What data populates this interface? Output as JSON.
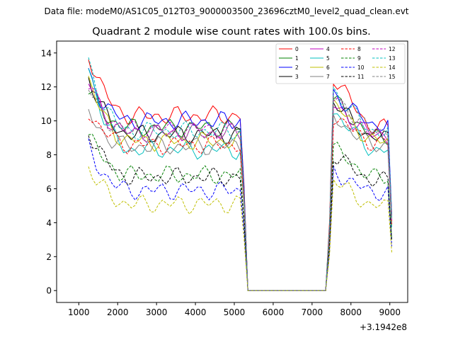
{
  "header": "Data file: modeM0/AS1C05_012T03_9000003500_23696cztM0_level2_quad_clean.evt",
  "chart_data": {
    "type": "line",
    "title": "Quadrant 2 module wise count rates with 100.0s bins.",
    "xlabel": "",
    "ylabel": "",
    "x_offset_label": "+3.1942e8",
    "xlim": [
      430,
      9460
    ],
    "ylim": [
      -0.7,
      14.7
    ],
    "x_ticks": [
      1000,
      2000,
      3000,
      4000,
      5000,
      6000,
      7000,
      8000,
      9000
    ],
    "x_tick_labels": [
      "1000",
      "2000",
      "3000",
      "4000",
      "5000",
      "6000",
      "7000",
      "8000",
      "9000"
    ],
    "y_ticks": [
      0,
      2,
      4,
      6,
      8,
      10,
      12,
      14
    ],
    "y_tick_labels": [
      "0",
      "2",
      "4",
      "6",
      "8",
      "10",
      "12",
      "14"
    ],
    "legend_position": "top-right",
    "series": [
      {
        "name": "0",
        "color": "#ff0000",
        "dash": "solid",
        "start": 14.0,
        "level": 10.3,
        "peak": 12.6,
        "post": 9.6
      },
      {
        "name": "1",
        "color": "#008000",
        "dash": "solid",
        "start": 11.8,
        "level": 9.6,
        "peak": 11.3,
        "post": 9.1
      },
      {
        "name": "2",
        "color": "#0000ff",
        "dash": "solid",
        "start": 12.7,
        "level": 10.0,
        "peak": 11.6,
        "post": 9.8
      },
      {
        "name": "3",
        "color": "#000000",
        "dash": "solid",
        "start": 12.6,
        "level": 9.2,
        "peak": 11.1,
        "post": 9.0
      },
      {
        "name": "4",
        "color": "#bf00bf",
        "dash": "solid",
        "start": 12.3,
        "level": 9.3,
        "peak": 10.9,
        "post": 9.2
      },
      {
        "name": "5",
        "color": "#00bfbf",
        "dash": "solid",
        "start": 13.2,
        "level": 8.3,
        "peak": 10.6,
        "post": 8.3
      },
      {
        "name": "6",
        "color": "#bfbf00",
        "dash": "solid",
        "start": 12.5,
        "level": 8.8,
        "peak": 11.0,
        "post": 8.8
      },
      {
        "name": "7",
        "color": "#808080",
        "dash": "solid",
        "start": 10.4,
        "level": 8.5,
        "peak": 10.2,
        "post": 8.6
      },
      {
        "name": "8",
        "color": "#ff0000",
        "dash": "dashed",
        "start": 10.6,
        "level": 8.6,
        "peak": 10.3,
        "post": 8.7
      },
      {
        "name": "9",
        "color": "#008000",
        "dash": "dashed",
        "start": 9.2,
        "level": 6.8,
        "peak": 8.4,
        "post": 6.7
      },
      {
        "name": "10",
        "color": "#0000ff",
        "dash": "dashed",
        "start": 8.4,
        "level": 5.9,
        "peak": 7.0,
        "post": 5.8
      },
      {
        "name": "11",
        "color": "#000000",
        "dash": "dashed",
        "start": 9.5,
        "level": 6.7,
        "peak": 8.0,
        "post": 6.5
      },
      {
        "name": "12",
        "color": "#bf00bf",
        "dash": "dashed",
        "start": 12.1,
        "level": 9.5,
        "peak": 11.2,
        "post": 9.2
      },
      {
        "name": "13",
        "color": "#00bfbf",
        "dash": "dashed",
        "start": 13.4,
        "level": 9.4,
        "peak": 11.8,
        "post": 9.4
      },
      {
        "name": "14",
        "color": "#bfbf00",
        "dash": "dashed",
        "start": 7.3,
        "level": 5.1,
        "peak": 6.5,
        "post": 5.0
      },
      {
        "name": "15",
        "color": "#808080",
        "dash": "dashed",
        "start": 11.9,
        "level": 9.3,
        "peak": 11.5,
        "post": 9.4
      }
    ],
    "time_structure": {
      "start": 1250,
      "bin": 100,
      "decay_end": 2400,
      "drop_begin": 5200,
      "zero_begin": 5350,
      "zero_end": 7350,
      "rise_peak": 7550,
      "end": 9050
    }
  }
}
